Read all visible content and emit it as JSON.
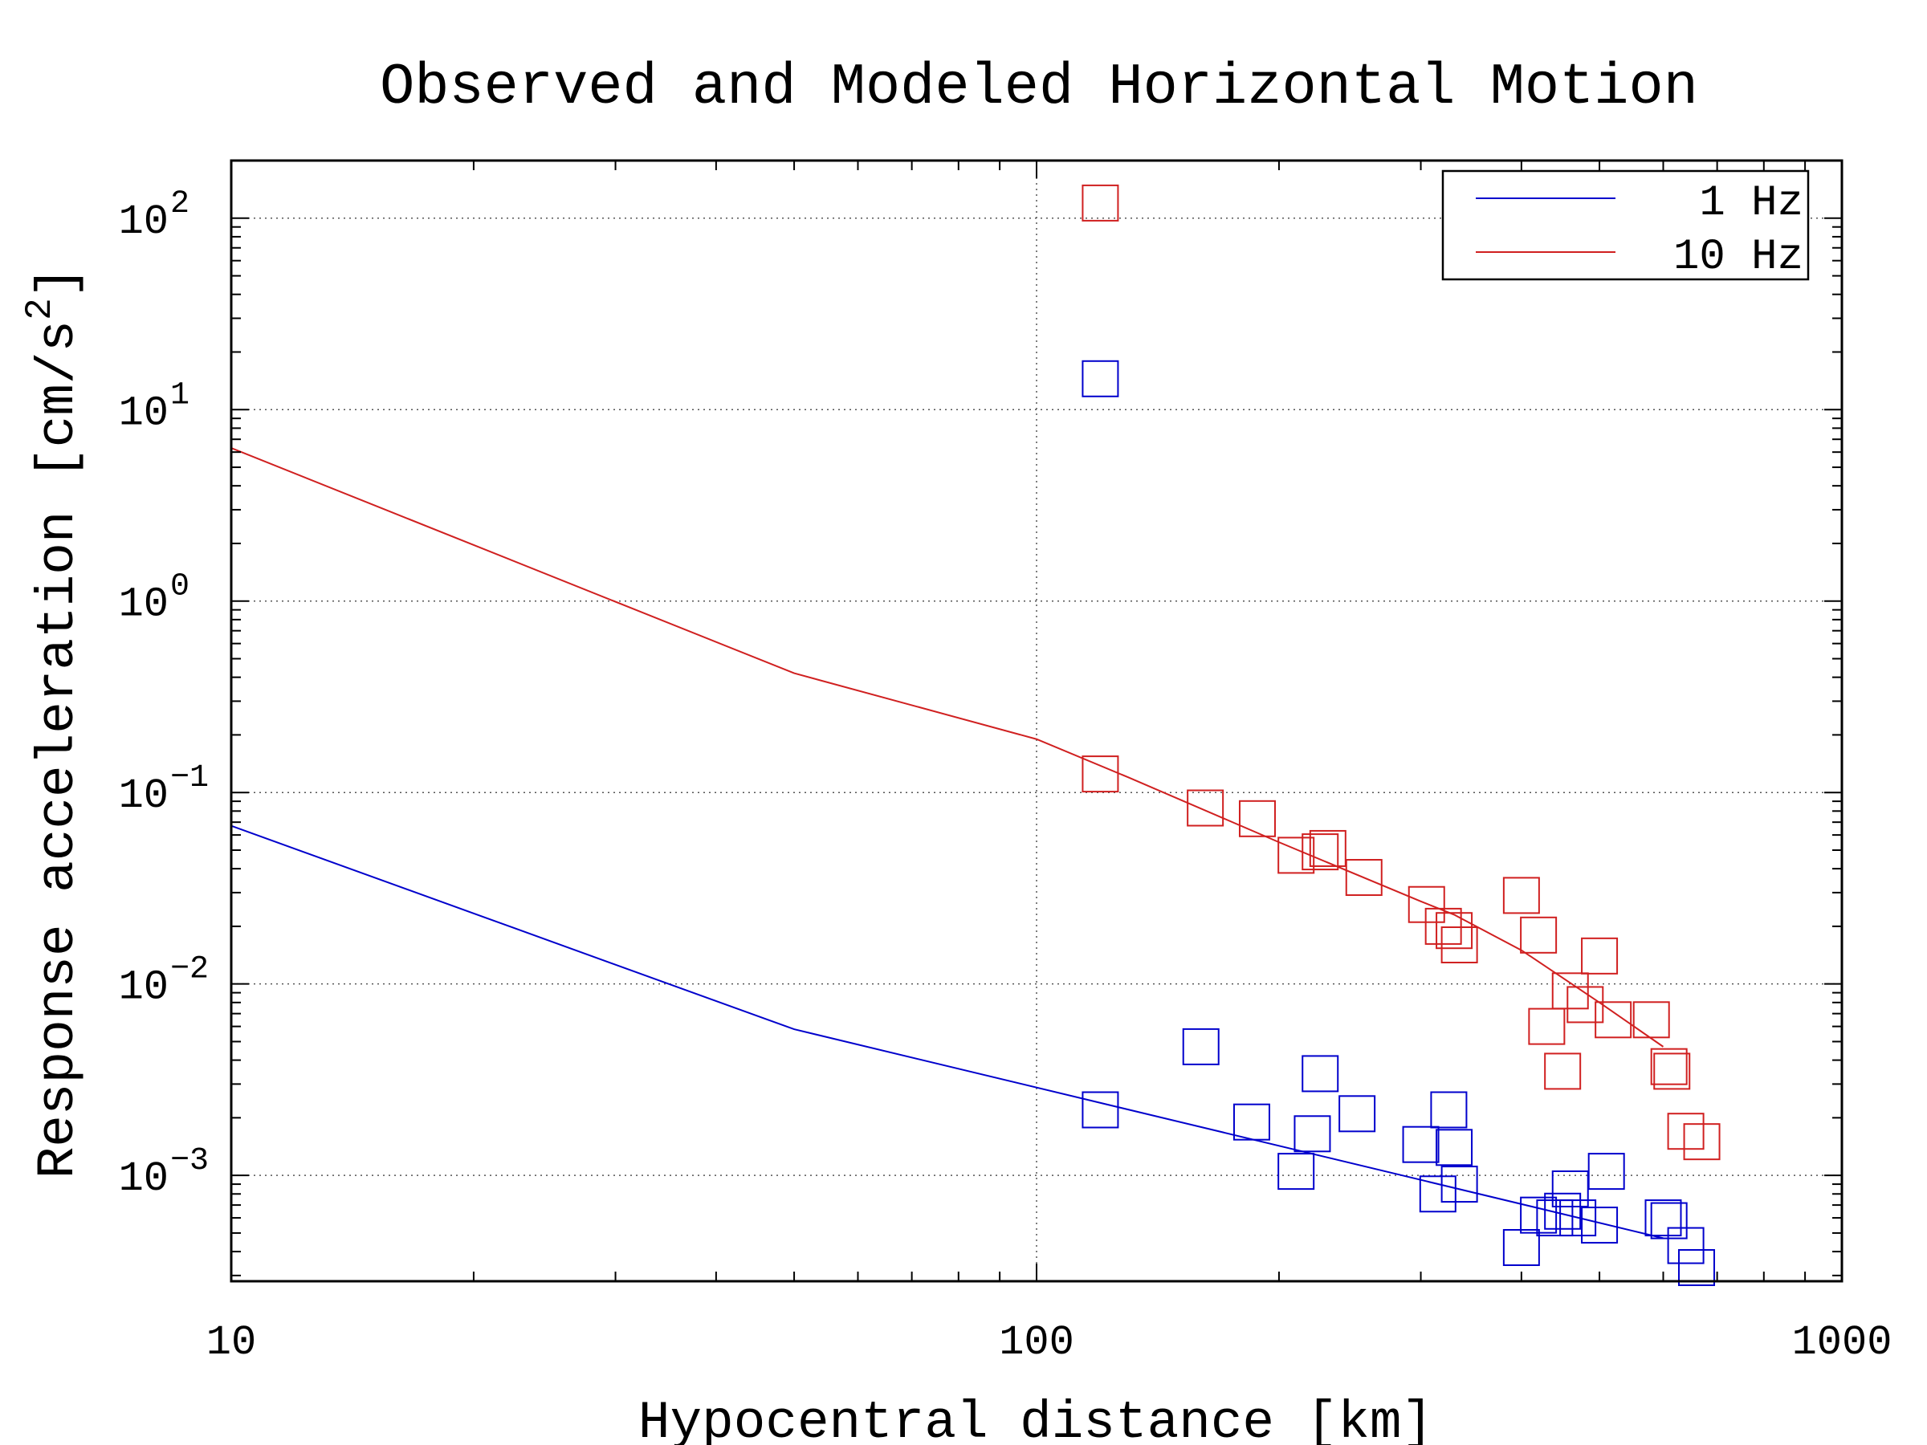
{
  "chart_data": {
    "type": "scatter",
    "title": "Observed and Modeled Horizontal Motion",
    "xlabel": "Hypocentral distance [km]",
    "ylabel": "Response acceleration [cm/s",
    "ylabel_superscript": "2",
    "ylabel_suffix": "]",
    "x_scale": "log",
    "y_scale": "log",
    "xlim": [
      10,
      1000
    ],
    "ylim": [
      0.00028,
      200
    ],
    "x_ticks": [
      {
        "value": 10,
        "label": "10"
      },
      {
        "value": 100,
        "label": "100"
      },
      {
        "value": 1000,
        "label": "1000"
      }
    ],
    "y_ticks": [
      {
        "value": 100,
        "base": "10",
        "exp": "2"
      },
      {
        "value": 10,
        "base": "10",
        "exp": "1"
      },
      {
        "value": 1,
        "base": "10",
        "exp": "0"
      },
      {
        "value": 0.1,
        "base": "10",
        "exp": "−1"
      },
      {
        "value": 0.01,
        "base": "10",
        "exp": "−2"
      },
      {
        "value": 0.001,
        "base": "10",
        "exp": "−3"
      }
    ],
    "grid": true,
    "legend_position": "top-right",
    "series": [
      {
        "name": "1 Hz",
        "color": "#0000cc",
        "model_line": {
          "x": [
            10,
            50,
            600
          ],
          "y": [
            0.067,
            0.0058,
            0.00047
          ]
        },
        "observed": {
          "x": [
            120,
            120,
            160,
            185,
            210,
            220,
            225,
            250,
            300,
            315,
            325,
            330,
            335,
            400,
            420,
            440,
            450,
            460,
            470,
            500,
            510,
            600,
            610,
            640,
            660
          ],
          "y": [
            14.5,
            0.0022,
            0.0047,
            0.0019,
            0.00105,
            0.00165,
            0.0034,
            0.0021,
            0.00145,
            0.0008,
            0.0022,
            0.0014,
            0.0009,
            0.00042,
            0.00062,
            0.0006,
            0.00065,
            0.00085,
            0.0006,
            0.00055,
            0.00105,
            0.0006,
            0.00058,
            0.00043,
            0.00033
          ]
        }
      },
      {
        "name": "10 Hz",
        "color": "#d02020",
        "model_line": {
          "x": [
            10,
            50,
            100,
            130,
            200,
            300,
            330,
            400,
            500,
            600
          ],
          "y": [
            6.3,
            0.42,
            0.19,
            0.12,
            0.055,
            0.027,
            0.023,
            0.015,
            0.008,
            0.0047
          ]
        },
        "observed": {
          "x": [
            120,
            120,
            162,
            188,
            210,
            225,
            230,
            255,
            305,
            320,
            330,
            335,
            400,
            420,
            430,
            450,
            460,
            480,
            500,
            520,
            580,
            610,
            615,
            640,
            670
          ],
          "y": [
            120,
            0.125,
            0.083,
            0.073,
            0.047,
            0.049,
            0.051,
            0.036,
            0.026,
            0.02,
            0.019,
            0.016,
            0.029,
            0.018,
            0.006,
            0.0035,
            0.0092,
            0.0078,
            0.014,
            0.0065,
            0.0065,
            0.0037,
            0.0035,
            0.0017,
            0.0015
          ]
        }
      }
    ]
  }
}
